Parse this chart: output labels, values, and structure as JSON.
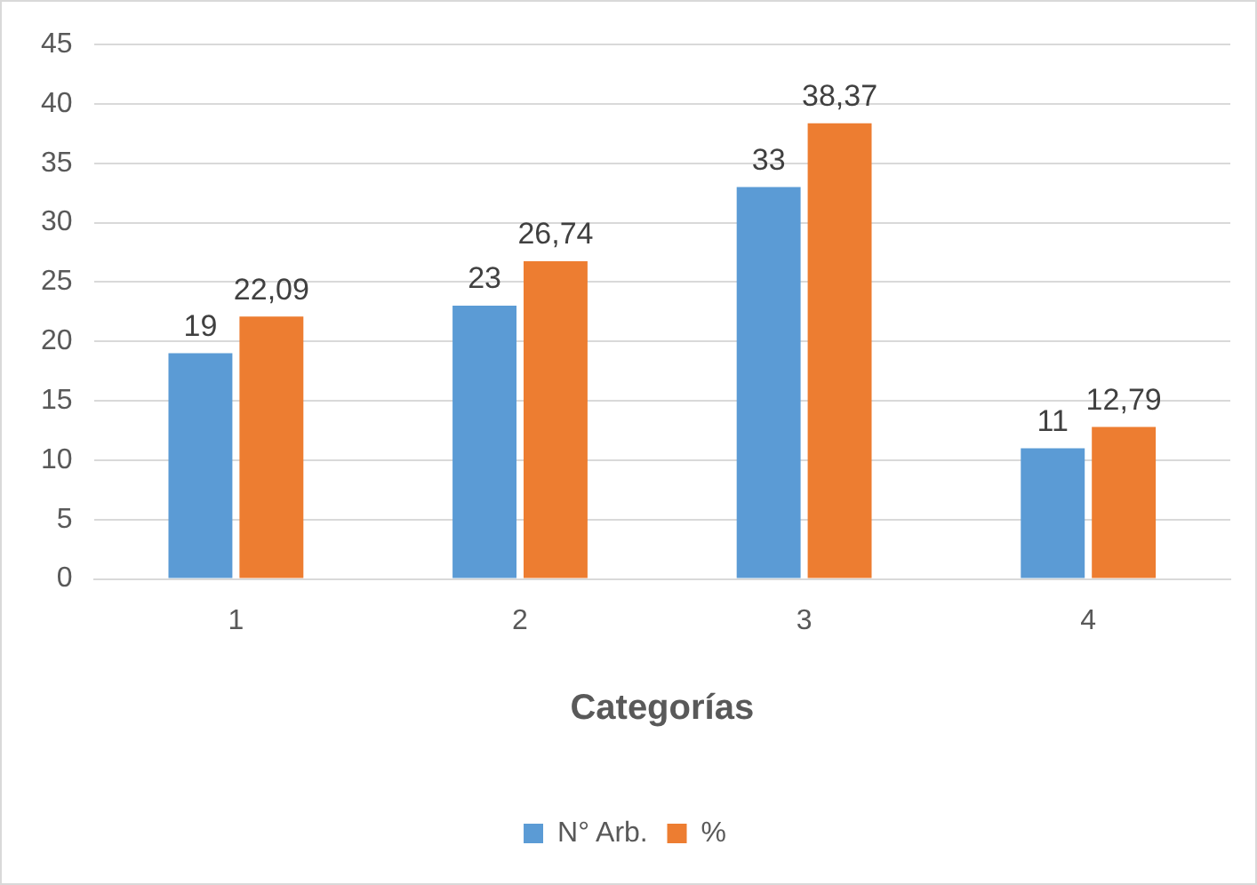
{
  "chart_data": {
    "type": "bar",
    "xlabel": "Categorías",
    "categories": [
      "1",
      "2",
      "3",
      "4"
    ],
    "series": [
      {
        "name": "N° Arb.",
        "color": "#5b9bd5",
        "values": [
          19,
          23,
          33,
          11
        ],
        "value_labels": [
          "19",
          "23",
          "33",
          "11"
        ]
      },
      {
        "name": "%",
        "color": "#ed7d31",
        "values": [
          22.09,
          26.74,
          38.37,
          12.79
        ],
        "value_labels": [
          "22,09",
          "26,74",
          "38,37",
          "12,79"
        ]
      }
    ],
    "ylim": [
      0,
      45
    ],
    "yticks": [
      0,
      5,
      10,
      15,
      20,
      25,
      30,
      35,
      40,
      45
    ],
    "grid": "y",
    "legend": "bottom"
  }
}
